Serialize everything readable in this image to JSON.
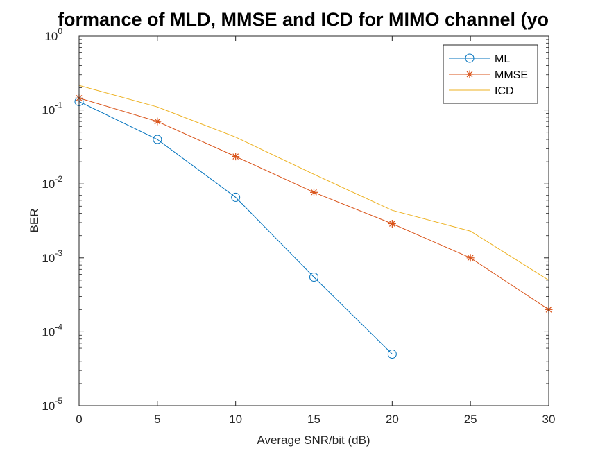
{
  "chart_data": {
    "type": "line",
    "title": "formance of MLD, MMSE and ICD for MIMO channel (yo",
    "xlabel": "Average SNR/bit (dB)",
    "ylabel": "BER",
    "xlim": [
      0,
      30
    ],
    "ylim": [
      1e-05,
      1
    ],
    "yscale": "log",
    "grid": false,
    "legend_position": "top-right",
    "x_ticks": [
      "0",
      "5",
      "10",
      "15",
      "20",
      "25",
      "30"
    ],
    "y_ticks": [
      {
        "base": "10",
        "exp": "-5"
      },
      {
        "base": "10",
        "exp": "-4"
      },
      {
        "base": "10",
        "exp": "-3"
      },
      {
        "base": "10",
        "exp": "-2"
      },
      {
        "base": "10",
        "exp": "-1"
      },
      {
        "base": "10",
        "exp": "0"
      }
    ],
    "series": [
      {
        "name": "ML",
        "color": "#0072BD",
        "marker": "circle",
        "x": [
          0,
          5,
          10,
          15,
          20
        ],
        "y": [
          0.13,
          0.04,
          0.0066,
          0.00055,
          5e-05
        ]
      },
      {
        "name": "MMSE",
        "color": "#D95319",
        "marker": "asterisk",
        "x": [
          0,
          5,
          10,
          15,
          20,
          25,
          30
        ],
        "y": [
          0.145,
          0.07,
          0.0235,
          0.0077,
          0.0029,
          0.001,
          0.0002
        ]
      },
      {
        "name": "ICD",
        "color": "#EDB120",
        "marker": "none",
        "x": [
          0,
          5,
          10,
          15,
          20,
          25,
          30
        ],
        "y": [
          0.215,
          0.11,
          0.043,
          0.0135,
          0.0044,
          0.0023,
          0.0005
        ]
      }
    ]
  }
}
